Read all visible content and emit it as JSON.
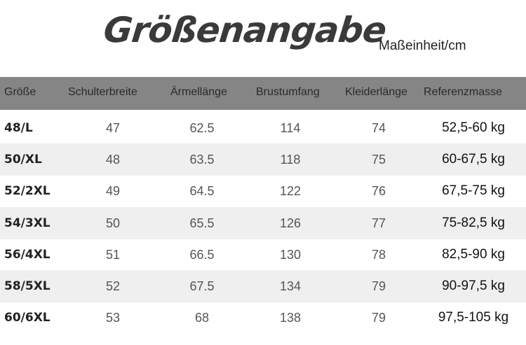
{
  "title": "Größenangabe",
  "unit": "Maßeinheit/cm",
  "headers": [
    "Größe",
    "Schulterbreite",
    "Ärmellänge",
    "Brustumfang",
    "Kleiderlänge",
    "Referenzmasse"
  ],
  "rows": [
    {
      "size": "48/L",
      "shoulder": "47",
      "sleeve": "62.5",
      "chest": "114",
      "length": "74",
      "ref": "52,5-60 kg"
    },
    {
      "size": "50/XL",
      "shoulder": "48",
      "sleeve": "63.5",
      "chest": "118",
      "length": "75",
      "ref": "60-67,5 kg"
    },
    {
      "size": "52/2XL",
      "shoulder": "49",
      "sleeve": "64.5",
      "chest": "122",
      "length": "76",
      "ref": "67,5-75 kg"
    },
    {
      "size": "54/3XL",
      "shoulder": "50",
      "sleeve": "65.5",
      "chest": "126",
      "length": "77",
      "ref": "75-82,5 kg"
    },
    {
      "size": "56/4XL",
      "shoulder": "51",
      "sleeve": "66.5",
      "chest": "130",
      "length": "78",
      "ref": "82,5-90 kg"
    },
    {
      "size": "58/5XL",
      "shoulder": "52",
      "sleeve": "67.5",
      "chest": "134",
      "length": "79",
      "ref": "90-97,5 kg"
    },
    {
      "size": "60/6XL",
      "shoulder": "53",
      "sleeve": "68",
      "chest": "138",
      "length": "79",
      "ref": "97,5-105 kg"
    }
  ],
  "colors": {
    "header_bg": "#858585",
    "shaded_row": "#efefef"
  }
}
